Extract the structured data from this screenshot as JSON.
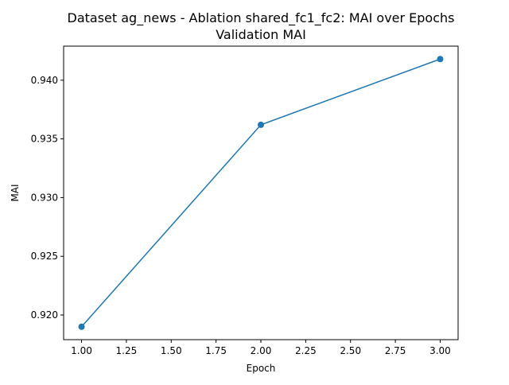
{
  "chart_data": {
    "type": "line",
    "title": "Dataset ag_news - Ablation shared_fc1_fc2: MAI over Epochs",
    "subtitle": "Validation MAI",
    "xlabel": "Epoch",
    "ylabel": "MAI",
    "xlim": [
      0.9,
      3.1
    ],
    "ylim": [
      0.9179,
      0.9429
    ],
    "x_ticks": [
      1.0,
      1.25,
      1.5,
      1.75,
      2.0,
      2.25,
      2.5,
      2.75,
      3.0
    ],
    "x_tick_labels": [
      "1.00",
      "1.25",
      "1.50",
      "1.75",
      "2.00",
      "2.25",
      "2.50",
      "2.75",
      "3.00"
    ],
    "y_ticks": [
      0.92,
      0.925,
      0.93,
      0.935,
      0.94
    ],
    "y_tick_labels": [
      "0.920",
      "0.925",
      "0.930",
      "0.935",
      "0.940"
    ],
    "grid": false,
    "series": [
      {
        "color": "#1f77b4",
        "marker": "circle",
        "x": [
          1.0,
          2.0,
          3.0
        ],
        "y": [
          0.919,
          0.9362,
          0.9418
        ]
      }
    ]
  }
}
